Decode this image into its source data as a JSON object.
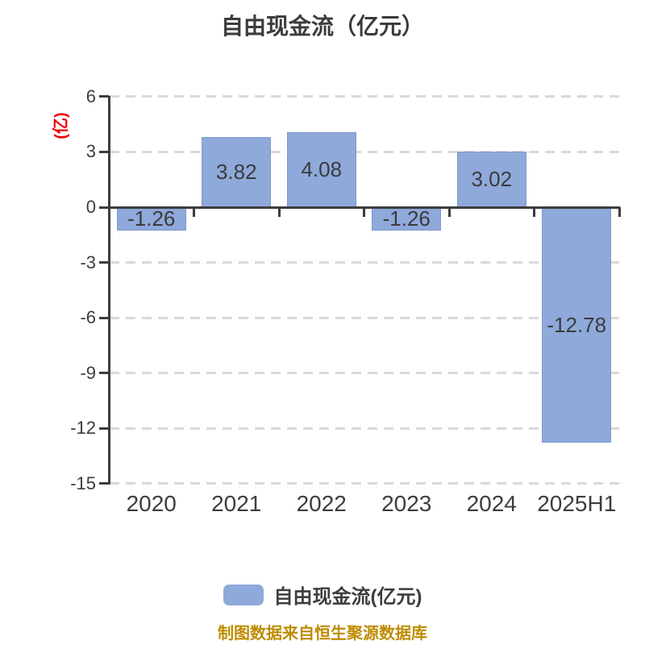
{
  "title": "自由现金流（亿元）",
  "unit_label": "(亿)",
  "legend": {
    "label": "自由现金流(亿元)",
    "swatch_color": "#8EA9DA"
  },
  "footer": "制图数据来自恒生聚源数据库",
  "colors": {
    "bar_fill": "#8EA9DA",
    "bar_border": "#7E9ACC",
    "axis": "#3D3D3D",
    "gridline": "#D9D9D9",
    "text": "#3B3B3B",
    "unit_label": "#F00000",
    "footer": "#BE8C00",
    "background": "#FFFFFF"
  },
  "chart_data": {
    "type": "bar",
    "title": "自由现金流（亿元）",
    "ylabel": "(亿)",
    "xlabel": "",
    "categories": [
      "2020",
      "2021",
      "2022",
      "2023",
      "2024",
      "2025H1"
    ],
    "values": [
      -1.26,
      3.82,
      4.08,
      -1.26,
      3.02,
      -12.78
    ],
    "value_labels": [
      "-1.26",
      "3.82",
      "4.08",
      "-1.26",
      "3.02",
      "-12.78"
    ],
    "series_name": "自由现金流(亿元)",
    "yticks": [
      6,
      3,
      0,
      -3,
      -6,
      -9,
      -12,
      -15
    ],
    "ylim": [
      -15,
      6
    ],
    "grid": "dashed-horizontal",
    "legend_position": "bottom",
    "value_label_position": "center-inside-bar"
  }
}
